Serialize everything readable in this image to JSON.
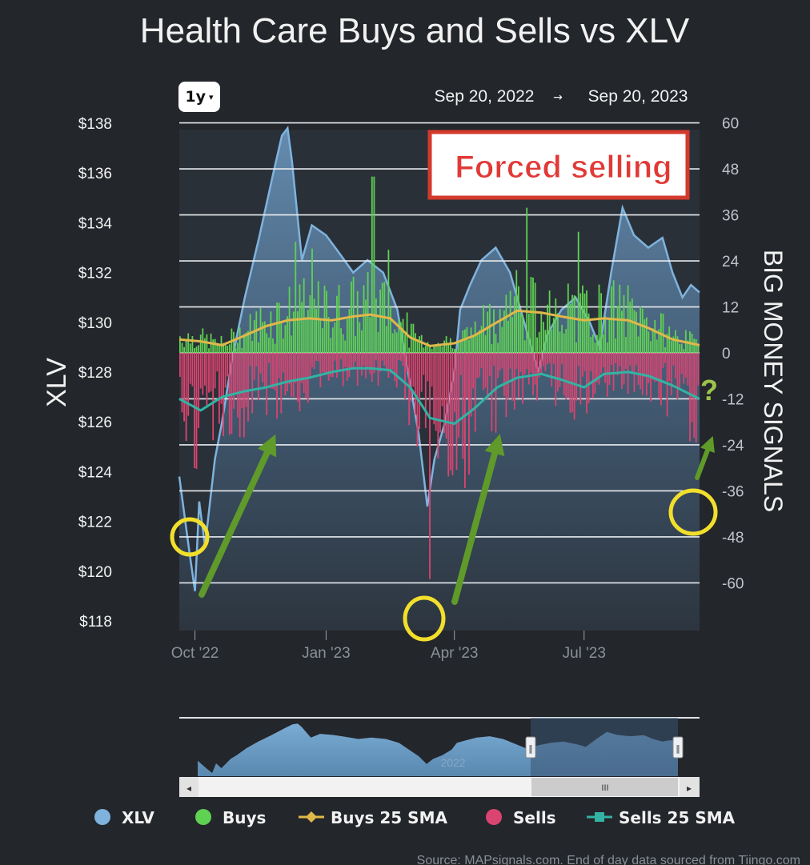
{
  "title": "Health Care Buys and Sells vs XLV",
  "range_selector": {
    "label": "1y",
    "caret": "▾"
  },
  "date_range": {
    "start": "Sep 20, 2022",
    "arrow": "→",
    "end": "Sep 20, 2023"
  },
  "annotation": {
    "text": "Forced selling",
    "color": "#e03a36"
  },
  "question_mark": "?",
  "source": "Source: MAPsignals.com. End of day data sourced from Tiingo.com",
  "colors": {
    "xlv": "#7fb3dd",
    "buys": "#5fd153",
    "buys_sma": "#e0b84a",
    "sells": "#d94470",
    "sells_sma": "#33b3a3",
    "arrows": "#5f9a2a",
    "circles": "#f1df2c"
  },
  "navigator": {
    "handle_left": "‖",
    "handle_right": "‖",
    "scroll_left": "◂",
    "scroll_right": "▸",
    "thumb_grip": "III",
    "ghost_label": "2022"
  },
  "chart_data": {
    "type": "area",
    "title": "Health Care Buys and Sells vs XLV",
    "x_range": [
      "2022-09-20",
      "2023-09-20"
    ],
    "x_ticks": [
      "Oct '22",
      "Jan '23",
      "Apr '23",
      "Jul '23"
    ],
    "left_axis": {
      "label": "XLV",
      "ticks": [
        "$138",
        "$136",
        "$134",
        "$132",
        "$130",
        "$128",
        "$126",
        "$124",
        "$122",
        "$120",
        "$118"
      ],
      "range": [
        117.5,
        138
      ]
    },
    "right_axis": {
      "label": "BIG MONEY SIGNALS",
      "ticks": [
        "60",
        "48",
        "36",
        "24",
        "12",
        "0",
        "-12",
        "-24",
        "-36",
        "-48",
        "-60"
      ],
      "range": [
        -72,
        60
      ]
    },
    "grid": true,
    "legend": {
      "position": "bottom",
      "items": [
        "XLV",
        "Buys",
        "Buys 25 SMA",
        "Sells",
        "Sells 25 SMA"
      ]
    },
    "series": [
      {
        "name": "XLV",
        "axis": "left",
        "kind": "area",
        "x": [
          "2022-09-20",
          "2022-09-27",
          "2022-10-01",
          "2022-10-04",
          "2022-10-08",
          "2022-10-15",
          "2022-10-20",
          "2022-10-27",
          "2022-11-05",
          "2022-11-15",
          "2022-11-25",
          "2022-12-01",
          "2022-12-05",
          "2022-12-08",
          "2022-12-15",
          "2022-12-22",
          "2023-01-01",
          "2023-01-10",
          "2023-01-20",
          "2023-01-30",
          "2023-02-10",
          "2023-02-20",
          "2023-03-01",
          "2023-03-07",
          "2023-03-13",
          "2023-03-18",
          "2023-03-25",
          "2023-04-01",
          "2023-04-05",
          "2023-04-12",
          "2023-04-20",
          "2023-04-30",
          "2023-05-10",
          "2023-05-20",
          "2023-05-30",
          "2023-06-05",
          "2023-06-15",
          "2023-06-25",
          "2023-07-05",
          "2023-07-12",
          "2023-07-20",
          "2023-07-28",
          "2023-08-05",
          "2023-08-15",
          "2023-08-25",
          "2023-09-01",
          "2023-09-08",
          "2023-09-14",
          "2023-09-20"
        ],
        "values": [
          123.8,
          120.8,
          119.2,
          122.8,
          121.0,
          124.5,
          126.0,
          128.5,
          131.0,
          133.4,
          136.0,
          137.5,
          137.8,
          136.5,
          132.5,
          133.9,
          133.5,
          132.8,
          132.0,
          132.5,
          132.0,
          130.5,
          127.5,
          125.5,
          122.6,
          124.5,
          125.9,
          128.0,
          130.5,
          131.5,
          132.5,
          133.0,
          132.0,
          130.0,
          128.0,
          129.5,
          130.5,
          131.0,
          130.0,
          129.0,
          132.0,
          134.6,
          133.5,
          133.0,
          133.4,
          132.0,
          131.0,
          131.5,
          131.2
        ]
      },
      {
        "name": "Buys",
        "axis": "right",
        "kind": "bars",
        "note": "daily bars, typically 3-20 with spikes to 46",
        "peak": 46
      },
      {
        "name": "Buys 25 SMA",
        "axis": "right",
        "x": [
          "2022-09-20",
          "2022-10-05",
          "2022-10-20",
          "2022-11-05",
          "2022-11-20",
          "2022-12-05",
          "2022-12-20",
          "2023-01-05",
          "2023-01-20",
          "2023-02-01",
          "2023-02-15",
          "2023-03-01",
          "2023-03-15",
          "2023-04-01",
          "2023-04-15",
          "2023-05-01",
          "2023-05-15",
          "2023-06-01",
          "2023-06-15",
          "2023-07-01",
          "2023-07-15",
          "2023-08-01",
          "2023-08-15",
          "2023-09-01",
          "2023-09-20"
        ],
        "values": [
          3.5,
          3.0,
          2.0,
          4.5,
          7.0,
          8.5,
          9.0,
          8.5,
          9.5,
          10.0,
          9.0,
          4.0,
          1.8,
          2.5,
          4.5,
          8.0,
          11.0,
          10.5,
          9.5,
          8.5,
          9.0,
          8.5,
          6.5,
          3.5,
          2.0
        ]
      },
      {
        "name": "Sells",
        "axis": "right",
        "kind": "bars",
        "note": "daily bars, typically -3 to -20 with spike to -59 in mid-March 2023",
        "trough": -59
      },
      {
        "name": "Sells 25 SMA",
        "axis": "right",
        "x": [
          "2022-09-20",
          "2022-10-05",
          "2022-10-20",
          "2022-11-05",
          "2022-11-20",
          "2022-12-05",
          "2022-12-20",
          "2023-01-05",
          "2023-01-20",
          "2023-02-01",
          "2023-02-15",
          "2023-03-01",
          "2023-03-15",
          "2023-04-01",
          "2023-04-15",
          "2023-05-01",
          "2023-05-15",
          "2023-06-01",
          "2023-06-15",
          "2023-07-01",
          "2023-07-15",
          "2023-08-01",
          "2023-08-15",
          "2023-09-01",
          "2023-09-20"
        ],
        "values": [
          -12.0,
          -15.0,
          -11.5,
          -10.0,
          -9.0,
          -7.5,
          -6.5,
          -5.0,
          -4.0,
          -4.0,
          -4.5,
          -9.0,
          -17.0,
          -18.5,
          -14.5,
          -9.0,
          -6.5,
          -5.5,
          -7.0,
          -9.0,
          -5.5,
          -5.0,
          -6.0,
          -8.5,
          -12.0
        ]
      }
    ]
  }
}
